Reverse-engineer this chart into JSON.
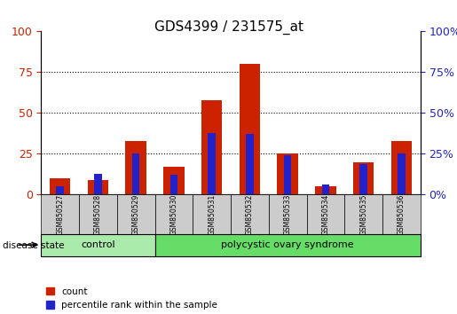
{
  "title": "GDS4399 / 231575_at",
  "samples": [
    "GSM850527",
    "GSM850528",
    "GSM850529",
    "GSM850530",
    "GSM850531",
    "GSM850532",
    "GSM850533",
    "GSM850534",
    "GSM850535",
    "GSM850536"
  ],
  "count_values": [
    10,
    9,
    33,
    17,
    58,
    80,
    25,
    5,
    20,
    33
  ],
  "percentile_values": [
    5,
    13,
    25,
    12,
    38,
    37,
    24,
    6,
    19,
    25
  ],
  "bar_color": "#cc2200",
  "pct_color": "#2222cc",
  "control_samples": 3,
  "control_label": "control",
  "pcos_label": "polycystic ovary syndrome",
  "disease_state_label": "disease state",
  "control_bg": "#aaeaaa",
  "pcos_bg": "#66dd66",
  "legend_count": "count",
  "legend_pct": "percentile rank within the sample",
  "ylim": [
    0,
    100
  ],
  "yticks": [
    0,
    25,
    50,
    75,
    100
  ],
  "bar_width": 0.55,
  "pct_bar_width": 0.2,
  "left_axis_color": "#cc2200",
  "right_axis_color": "#2222cc",
  "tick_bg": "#cccccc"
}
